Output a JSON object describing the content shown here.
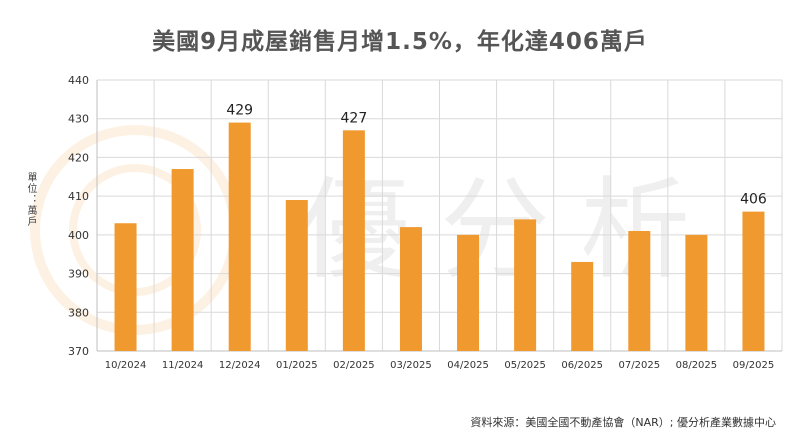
{
  "chart_data": {
    "type": "bar",
    "title": "美國9月成屋銷售月增1.5%，年化達406萬戶",
    "ylabel": "單位：萬戶",
    "categories": [
      "10/2024",
      "11/2024",
      "12/2024",
      "01/2025",
      "02/2025",
      "03/2025",
      "04/2025",
      "05/2025",
      "06/2025",
      "07/2025",
      "08/2025",
      "09/2025"
    ],
    "values": [
      403,
      417,
      429,
      409,
      427,
      402,
      400,
      404,
      393,
      401,
      400,
      406
    ],
    "data_labels": {
      "2": "429",
      "4": "427",
      "11": "406"
    },
    "ylim": [
      370,
      440
    ],
    "yticks": [
      370,
      380,
      390,
      400,
      410,
      420,
      430,
      440
    ],
    "grid": true,
    "bar_color": "#F0992E"
  },
  "watermark": {
    "text": "優分析"
  },
  "source": "資料來源：美國全國不動產協會（NAR）; 優分析產業數據中心"
}
